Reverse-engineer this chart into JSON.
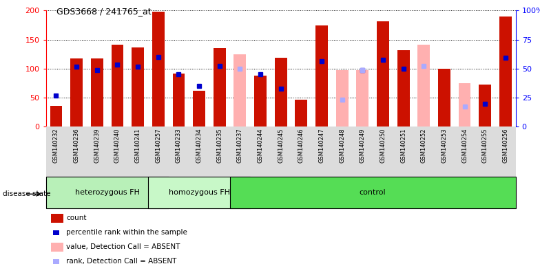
{
  "title": "GDS3668 / 241765_at",
  "samples": [
    "GSM140232",
    "GSM140236",
    "GSM140239",
    "GSM140240",
    "GSM140241",
    "GSM140257",
    "GSM140233",
    "GSM140234",
    "GSM140235",
    "GSM140237",
    "GSM140244",
    "GSM140245",
    "GSM140246",
    "GSM140247",
    "GSM140248",
    "GSM140249",
    "GSM140250",
    "GSM140251",
    "GSM140252",
    "GSM140253",
    "GSM140254",
    "GSM140255",
    "GSM140256"
  ],
  "count_values": [
    36,
    118,
    118,
    141,
    137,
    198,
    91,
    62,
    135,
    null,
    88,
    119,
    46,
    174,
    null,
    null,
    181,
    132,
    null,
    100,
    null,
    72,
    190
  ],
  "rank_values": [
    54,
    103,
    98,
    107,
    103,
    120,
    90,
    70,
    104,
    null,
    90,
    65,
    null,
    113,
    null,
    98,
    115,
    100,
    null,
    null,
    null,
    40,
    119
  ],
  "absent_value_values": [
    null,
    null,
    null,
    null,
    null,
    null,
    null,
    null,
    null,
    125,
    null,
    null,
    null,
    null,
    97,
    97,
    null,
    null,
    141,
    null,
    75,
    null,
    null
  ],
  "absent_rank_values": [
    null,
    null,
    null,
    null,
    null,
    null,
    null,
    null,
    null,
    100,
    null,
    null,
    null,
    null,
    47,
    97,
    null,
    null,
    105,
    null,
    35,
    null,
    null
  ],
  "group_spans": [
    {
      "label": "heterozygous FH",
      "start": 0,
      "end": 5,
      "color": "#b8f0b8"
    },
    {
      "label": "homozygous FH",
      "start": 5,
      "end": 9,
      "color": "#c8f8c8"
    },
    {
      "label": "control",
      "start": 9,
      "end": 22,
      "color": "#55dd55"
    }
  ],
  "ylim_left": [
    0,
    200
  ],
  "ylim_right": [
    0,
    100
  ],
  "yticks_left": [
    0,
    50,
    100,
    150,
    200
  ],
  "yticks_right": [
    0,
    25,
    50,
    75,
    100
  ],
  "bar_color_red": "#CC1100",
  "bar_color_pink": "#FFB0B0",
  "dot_color_blue": "#0000CC",
  "dot_color_lightblue": "#AAAAFF",
  "tick_bg_color": "#DCDCDC",
  "legend_items": [
    {
      "color": "#CC1100",
      "type": "rect",
      "label": "count"
    },
    {
      "color": "#0000CC",
      "type": "square",
      "label": "percentile rank within the sample"
    },
    {
      "color": "#FFB0B0",
      "type": "rect",
      "label": "value, Detection Call = ABSENT"
    },
    {
      "color": "#AAAAFF",
      "type": "square",
      "label": "rank, Detection Call = ABSENT"
    }
  ]
}
